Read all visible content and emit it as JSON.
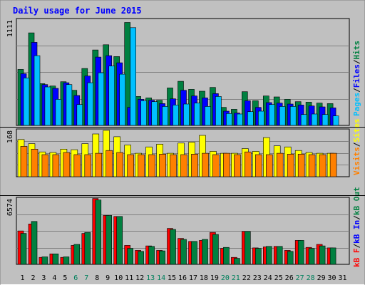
{
  "chart_data": [
    {
      "type": "bar",
      "title": "Daily usage for June 2015",
      "panel": "hits-files-pages",
      "ymax_label": "1111",
      "ylim": [
        0,
        1111
      ],
      "categories": [
        "1",
        "2",
        "3",
        "4",
        "5",
        "6",
        "7",
        "8",
        "9",
        "10",
        "11",
        "12",
        "13",
        "14",
        "15",
        "16",
        "17",
        "18",
        "19",
        "20",
        "21",
        "22",
        "23",
        "24",
        "25",
        "26",
        "27",
        "28",
        "29",
        "30",
        "31"
      ],
      "weekend_days": [
        "6",
        "7",
        "13",
        "14",
        "20",
        "21",
        "27",
        "28"
      ],
      "legend": [
        "Pages",
        "/",
        "Files",
        "/",
        "Hits"
      ],
      "series": [
        {
          "name": "Hits",
          "color": "#008040",
          "values": [
            590,
            975,
            440,
            415,
            460,
            370,
            600,
            795,
            850,
            725,
            1085,
            305,
            290,
            265,
            395,
            465,
            380,
            360,
            400,
            190,
            170,
            355,
            260,
            310,
            300,
            275,
            250,
            245,
            235,
            230,
            null
          ]
        },
        {
          "name": "Files",
          "color": "#0000ff",
          "values": [
            545,
            875,
            430,
            390,
            450,
            315,
            520,
            720,
            735,
            660,
            190,
            275,
            265,
            230,
            280,
            370,
            310,
            290,
            335,
            150,
            130,
            260,
            190,
            240,
            235,
            225,
            215,
            205,
            195,
            185,
            null
          ]
        },
        {
          "name": "Pages",
          "color": "#00c0ff",
          "values": [
            500,
            735,
            405,
            275,
            430,
            220,
            450,
            555,
            625,
            540,
            1030,
            260,
            250,
            200,
            215,
            225,
            235,
            200,
            305,
            125,
            120,
            145,
            150,
            220,
            200,
            200,
            115,
            120,
            115,
            100,
            null
          ]
        }
      ]
    },
    {
      "type": "bar",
      "panel": "visits-sites",
      "ymax_label": "168",
      "ylim": [
        0,
        168
      ],
      "legend": [
        "Visits",
        "/",
        "Sites"
      ],
      "series": [
        {
          "name": "Visits",
          "color": "#ffff00",
          "values": [
            135,
            120,
            90,
            88,
            100,
            98,
            120,
            155,
            168,
            145,
            115,
            85,
            108,
            118,
            85,
            122,
            125,
            150,
            92,
            85,
            85,
            102,
            92,
            142,
            112,
            108,
            95,
            88,
            85,
            85,
            null
          ]
        },
        {
          "name": "Sites",
          "color": "#ff8000",
          "values": [
            110,
            100,
            80,
            80,
            88,
            80,
            80,
            85,
            95,
            88,
            80,
            80,
            80,
            82,
            80,
            80,
            82,
            85,
            80,
            85,
            80,
            90,
            80,
            80,
            85,
            82,
            82,
            80,
            80,
            85,
            null
          ]
        }
      ]
    },
    {
      "type": "bar",
      "panel": "kbf-kbin-kbout",
      "ymax_label": "6574",
      "ylim": [
        0,
        6574
      ],
      "legend": [
        "kB F",
        "/",
        "kB In",
        "/",
        "kB Out"
      ],
      "series": [
        {
          "name": "kB F",
          "color": "#ff0000",
          "values": [
            3350,
            4050,
            700,
            1050,
            700,
            1900,
            3100,
            6600,
            4900,
            4800,
            1900,
            1400,
            1850,
            1400,
            3600,
            2600,
            2300,
            2400,
            3200,
            1600,
            700,
            3300,
            1650,
            1750,
            1800,
            1400,
            2400,
            1700,
            2000,
            1650,
            null
          ]
        },
        {
          "name": "kB In",
          "color": "#008040",
          "values": [
            3100,
            4300,
            750,
            1050,
            750,
            2000,
            3200,
            6450,
            4900,
            4800,
            1600,
            1300,
            1800,
            1350,
            3500,
            2500,
            2300,
            2500,
            3000,
            1700,
            600,
            3300,
            1600,
            1800,
            1800,
            1300,
            2400,
            1600,
            1850,
            1650,
            null
          ]
        }
      ]
    }
  ],
  "colors": {
    "background": "#c0c0c0",
    "border_dark": "#808080",
    "grid": "#808080",
    "title": "#0000ff",
    "weekday_label": "#000000",
    "weekend_label": "#00805c",
    "separator": "#000000"
  }
}
